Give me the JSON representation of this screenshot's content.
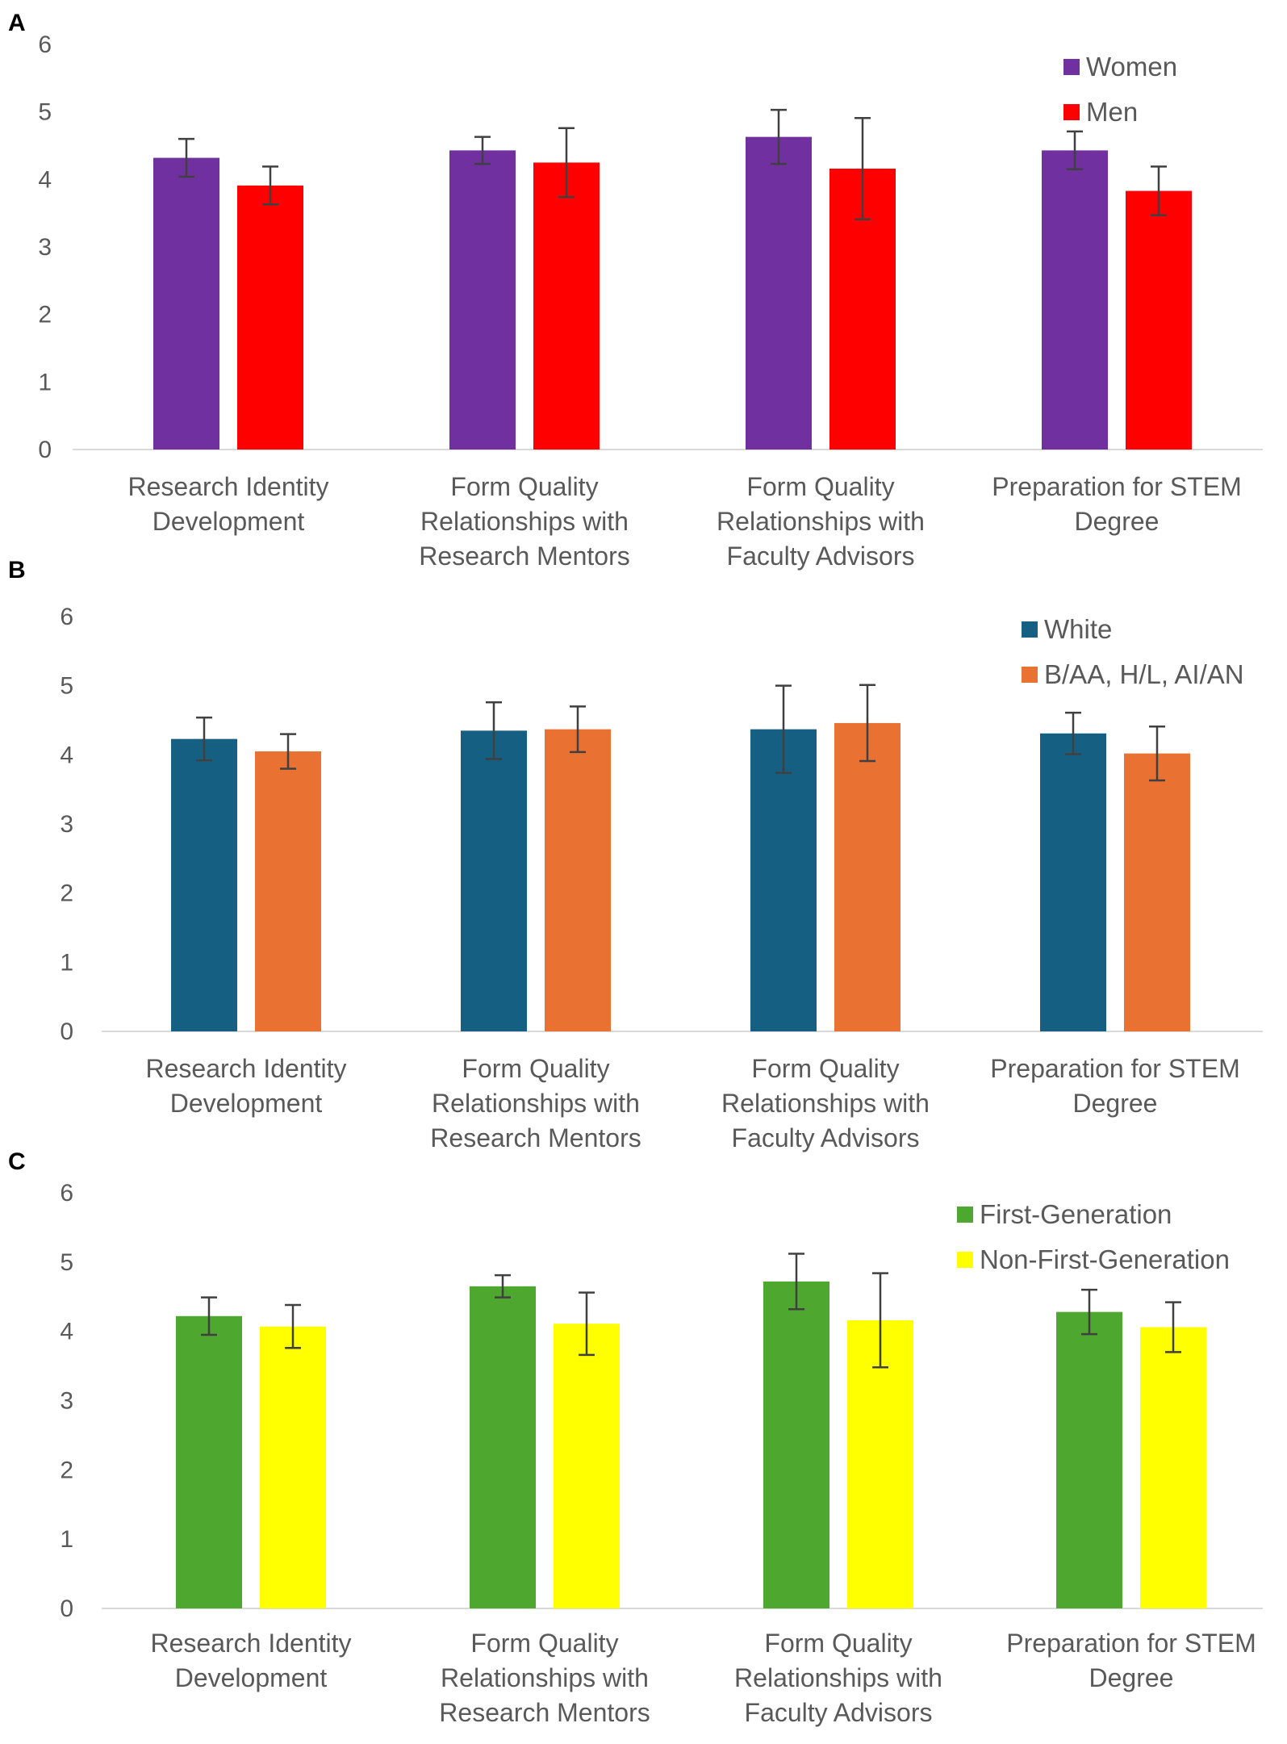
{
  "chart_data": [
    {
      "panel": "A",
      "type": "bar",
      "categories": [
        [
          "Research Identity",
          "Development"
        ],
        [
          "Form Quality",
          "Relationships with",
          "Research Mentors"
        ],
        [
          "Form Quality",
          "Relationships with",
          "Faculty Advisors"
        ],
        [
          "Preparation for STEM",
          "Degree"
        ]
      ],
      "ylim": [
        0,
        6
      ],
      "yticks": [
        0,
        1,
        2,
        3,
        4,
        5,
        6
      ],
      "legend_position": "top-right",
      "series": [
        {
          "name": "Women",
          "color": "#7030a0",
          "values": [
            4.32,
            4.43,
            4.63,
            4.43
          ],
          "errors": [
            0.28,
            0.2,
            0.4,
            0.28
          ]
        },
        {
          "name": "Men",
          "color": "#ff0000",
          "values": [
            3.91,
            4.25,
            4.16,
            3.83
          ],
          "errors": [
            0.28,
            0.51,
            0.75,
            0.36
          ]
        }
      ]
    },
    {
      "panel": "B",
      "type": "bar",
      "categories": [
        [
          "Research Identity",
          "Development"
        ],
        [
          "Form Quality",
          "Relationships with",
          "Research Mentors"
        ],
        [
          "Form Quality",
          "Relationships with",
          "Faculty Advisors"
        ],
        [
          "Preparation for STEM",
          "Degree"
        ]
      ],
      "ylim": [
        0,
        6
      ],
      "yticks": [
        0,
        1,
        2,
        3,
        4,
        5,
        6
      ],
      "legend_position": "top-right",
      "series": [
        {
          "name": "White",
          "color": "#156082",
          "values": [
            4.23,
            4.35,
            4.37,
            4.31
          ],
          "errors": [
            0.31,
            0.41,
            0.63,
            0.3
          ]
        },
        {
          "name": "B/AA, H/L, AI/AN",
          "color": "#e97132",
          "values": [
            4.05,
            4.37,
            4.46,
            4.02
          ],
          "errors": [
            0.25,
            0.33,
            0.55,
            0.39
          ]
        }
      ]
    },
    {
      "panel": "C",
      "type": "bar",
      "categories": [
        [
          "Research Identity",
          "Development"
        ],
        [
          "Form Quality",
          "Relationships with",
          "Research Mentors"
        ],
        [
          "Form Quality",
          "Relationships with",
          "Faculty Advisors"
        ],
        [
          "Preparation for STEM",
          "Degree"
        ]
      ],
      "ylim": [
        0,
        6
      ],
      "yticks": [
        0,
        1,
        2,
        3,
        4,
        5,
        6
      ],
      "legend_position": "top-right",
      "series": [
        {
          "name": "First-Generation",
          "color": "#4ea72e",
          "values": [
            4.22,
            4.65,
            4.72,
            4.28
          ],
          "errors": [
            0.27,
            0.16,
            0.4,
            0.32
          ]
        },
        {
          "name": "Non-First-Generation",
          "color": "#ffff00",
          "values": [
            4.07,
            4.11,
            4.16,
            4.06
          ],
          "errors": [
            0.31,
            0.45,
            0.68,
            0.36
          ]
        }
      ]
    }
  ]
}
